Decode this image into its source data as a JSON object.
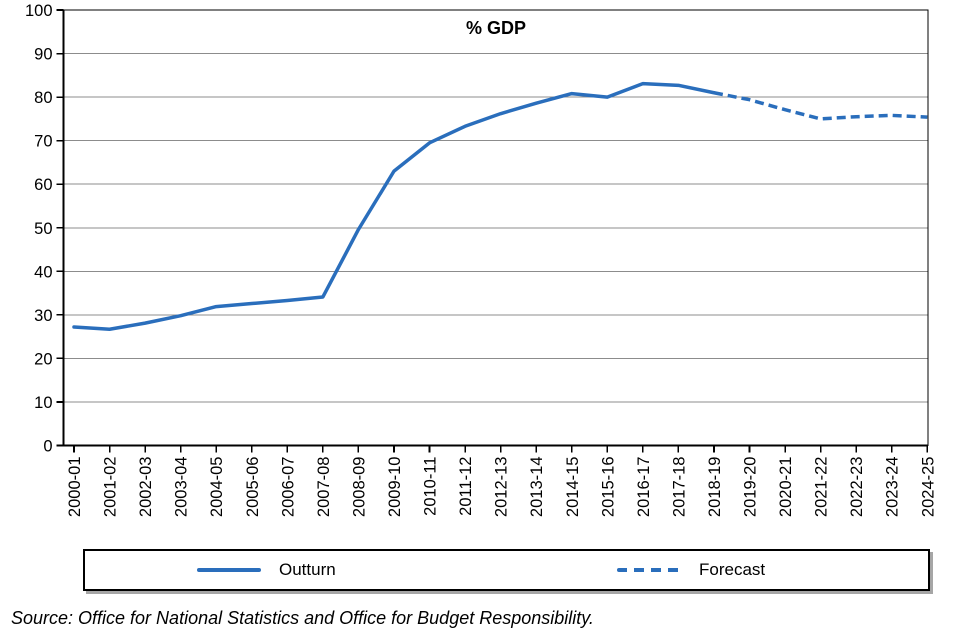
{
  "chart": {
    "title": "% GDP",
    "source_note": "Source: Office for National Statistics and Office for Budget Responsibility.",
    "colors": {
      "line": "#2a6ebc",
      "grid": "#8c8c8c",
      "axis": "#000000",
      "background": "#ffffff",
      "legend_shadow": "#a6a6a6"
    },
    "legend": {
      "items": [
        {
          "label": "Outturn",
          "style": "solid"
        },
        {
          "label": "Forecast",
          "style": "dashed"
        }
      ]
    }
  },
  "chart_data": {
    "type": "line",
    "title": "% GDP",
    "categories": [
      "2000-01",
      "2001-02",
      "2002-03",
      "2003-04",
      "2004-05",
      "2005-06",
      "2006-07",
      "2007-08",
      "2008-09",
      "2009-10",
      "2010-11",
      "2011-12",
      "2012-13",
      "2013-14",
      "2014-15",
      "2015-16",
      "2016-17",
      "2017-18",
      "2018-19",
      "2019-20",
      "2020-21",
      "2021-22",
      "2022-23",
      "2023-24",
      "2024-25"
    ],
    "series": [
      {
        "name": "Outturn",
        "style": "solid",
        "start_index": 0,
        "values": [
          27.2,
          26.7,
          28.1,
          29.8,
          31.9,
          32.6,
          33.3,
          34.1,
          49.6,
          63.0,
          69.5,
          73.3,
          76.2,
          78.6,
          80.8,
          80.0,
          83.1,
          82.7,
          81.0
        ]
      },
      {
        "name": "Forecast",
        "style": "dashed",
        "start_index": 18,
        "values": [
          81.0,
          79.4,
          77.1,
          75.0,
          75.5,
          75.8,
          75.4
        ]
      }
    ],
    "ylim": [
      0,
      100
    ],
    "y_tick_step": 10,
    "x_tick_label_rotation": -90,
    "grid": "horizontal",
    "legend_position": "bottom"
  }
}
